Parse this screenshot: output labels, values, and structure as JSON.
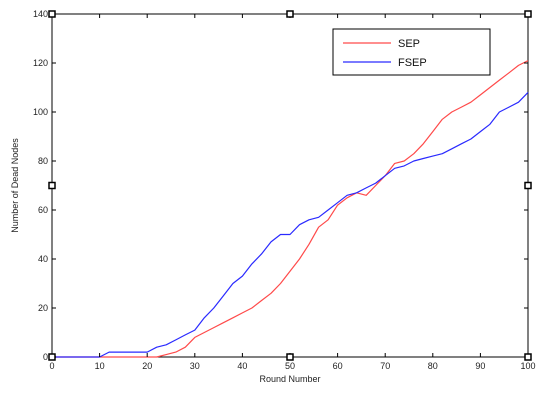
{
  "chart_data": {
    "type": "line",
    "xlabel": "Round Number",
    "ylabel": "Number of Dead Nodes",
    "xlim": [
      0,
      100
    ],
    "ylim": [
      0,
      140
    ],
    "xticks": [
      0,
      10,
      20,
      30,
      40,
      50,
      60,
      70,
      80,
      90,
      100
    ],
    "yticks": [
      0,
      20,
      40,
      60,
      80,
      100,
      120,
      140
    ],
    "xtick_labels": [
      "0",
      "10",
      "20",
      "30",
      "40",
      "50",
      "60",
      "70",
      "80",
      "90",
      "100"
    ],
    "ytick_labels": [
      "0",
      "20",
      "40",
      "60",
      "80",
      "100",
      "120",
      "140"
    ],
    "grid": false,
    "legend_position": "top-right",
    "series": [
      {
        "name": "SEP",
        "color": "#ff4a4a",
        "x": [
          0,
          10,
          20,
          22,
          24,
          26,
          28,
          30,
          32,
          34,
          36,
          38,
          40,
          42,
          44,
          46,
          48,
          50,
          52,
          54,
          56,
          58,
          60,
          62,
          64,
          66,
          68,
          70,
          72,
          74,
          76,
          78,
          80,
          82,
          84,
          86,
          88,
          90,
          92,
          94,
          96,
          98,
          100
        ],
        "y": [
          0,
          0,
          0,
          0,
          1,
          2,
          4,
          8,
          10,
          12,
          14,
          16,
          18,
          20,
          23,
          26,
          30,
          35,
          40,
          46,
          53,
          56,
          62,
          65,
          67,
          66,
          70,
          74,
          79,
          80,
          83,
          87,
          92,
          97,
          100,
          102,
          104,
          107,
          110,
          113,
          116,
          119,
          121
        ]
      },
      {
        "name": "FSEP",
        "color": "#2a2aff",
        "x": [
          0,
          10,
          12,
          14,
          16,
          18,
          20,
          22,
          24,
          26,
          28,
          30,
          32,
          34,
          36,
          38,
          40,
          42,
          44,
          46,
          48,
          50,
          52,
          54,
          56,
          58,
          60,
          62,
          64,
          66,
          68,
          70,
          72,
          74,
          76,
          78,
          80,
          82,
          84,
          86,
          88,
          90,
          92,
          94,
          96,
          98,
          100
        ],
        "y": [
          0,
          0,
          2,
          2,
          2,
          2,
          2,
          4,
          5,
          7,
          9,
          11,
          16,
          20,
          25,
          30,
          33,
          38,
          42,
          47,
          50,
          50,
          54,
          56,
          57,
          60,
          63,
          66,
          67,
          69,
          71,
          74,
          77,
          78,
          80,
          81,
          82,
          83,
          85,
          87,
          89,
          92,
          95,
          100,
          102,
          104,
          108
        ]
      }
    ]
  }
}
